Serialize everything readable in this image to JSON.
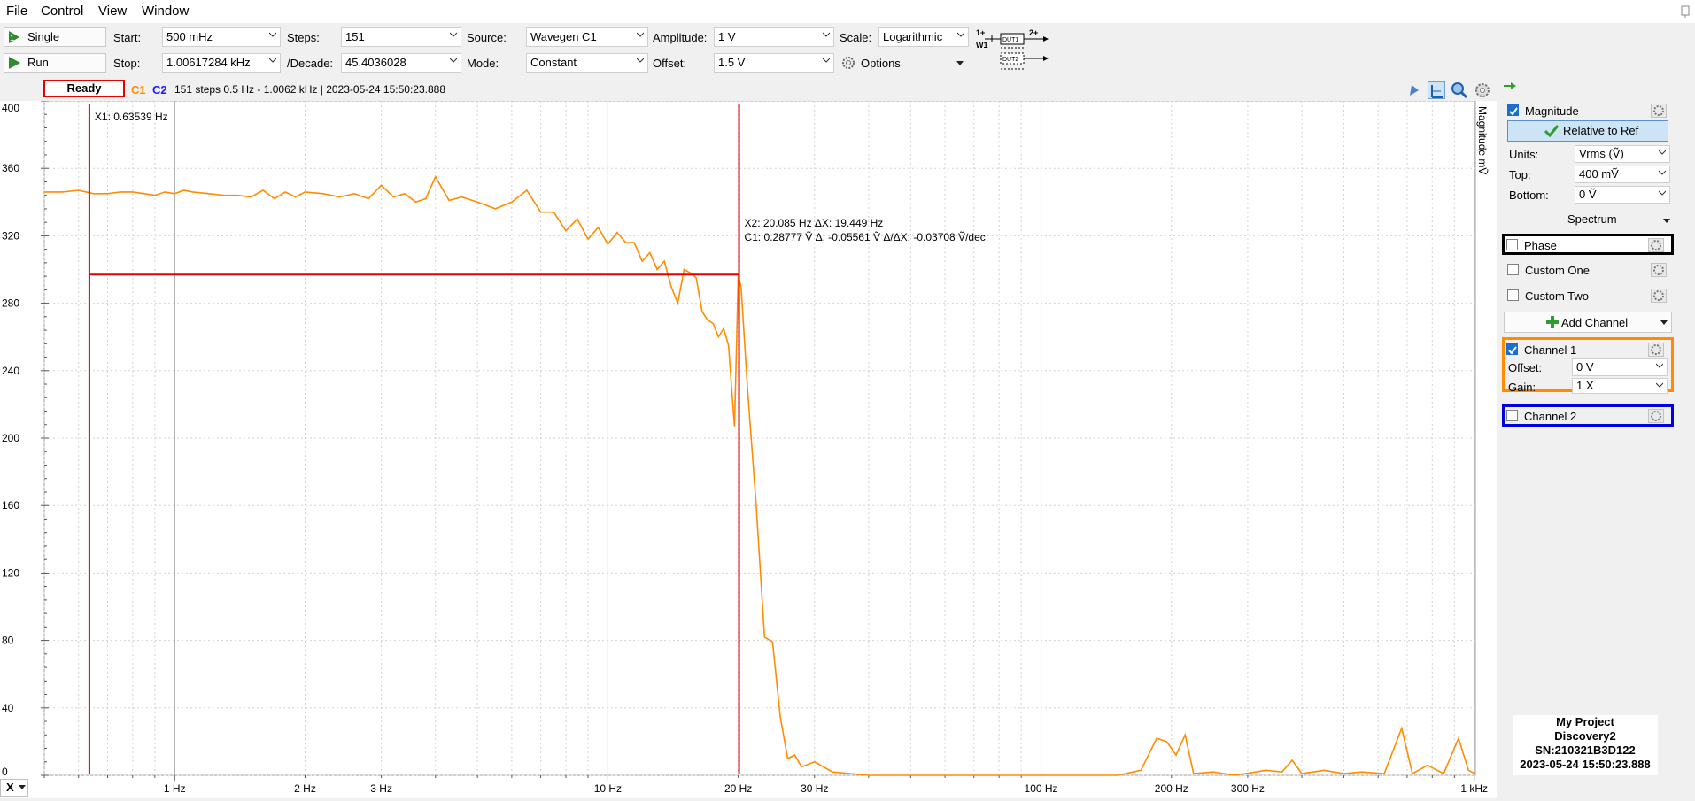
{
  "menu": {
    "file": "File",
    "control": "Control",
    "view": "View",
    "window": "Window"
  },
  "toolbar": {
    "single_label": "Single",
    "run_label": "Run",
    "start_label": "Start:",
    "start_value": "500 mHz",
    "stop_label": "Stop:",
    "stop_value": "1.00617284 kHz",
    "steps_label": "Steps:",
    "steps_value": "151",
    "decade_label": "/Decade:",
    "decade_value": "45.4036028",
    "source_label": "Source:",
    "source_value": "Wavegen C1",
    "mode_label": "Mode:",
    "mode_value": "Constant",
    "amplitude_label": "Amplitude:",
    "amplitude_value": "1 V",
    "offset_label": "Offset:",
    "offset_value": "1.5 V",
    "scale_label": "Scale:",
    "scale_value": "Logarithmic",
    "options_label": "Options",
    "diagram": {
      "w1": "W1",
      "one_plus": "1+",
      "two_plus": "2+",
      "dut1": "DUT1",
      "dut2": "DUT2"
    }
  },
  "status": {
    "ready": "Ready",
    "c1": "C1",
    "c2": "C2",
    "summary": "151 steps  0.5 Hz - 1.0062 kHz | 2023-05-24 15:50:23.888"
  },
  "plot": {
    "axis_title": "Magnitude  mṼ",
    "cursor1": "X1: 0.63539 Hz",
    "cursor2_line1": "X2: 20.085 Hz    ΔX: 19.449 Hz",
    "cursor2_line2": "C1: 0.28777 Ṽ    Δ: -0.05561 Ṽ      Δ/ΔX: -0.03708 Ṽ/dec",
    "x_axis_button": "X"
  },
  "chart_data": {
    "type": "line",
    "title": "",
    "xlabel": "",
    "ylabel": "Magnitude mṼ",
    "x_scale": "log",
    "xlim": [
      0.5,
      1006.17
    ],
    "ylim": [
      0,
      400
    ],
    "grid": true,
    "y_ticks": [
      "0",
      "40",
      "80",
      "120",
      "160",
      "200",
      "240",
      "280",
      "320",
      "360",
      "400"
    ],
    "y_tick_values": [
      0,
      40,
      80,
      120,
      160,
      200,
      240,
      280,
      320,
      360,
      400
    ],
    "x_ticks": [
      "1 Hz",
      "2 Hz",
      "3 Hz",
      "10 Hz",
      "20 Hz",
      "30 Hz",
      "100 Hz",
      "200 Hz",
      "300 Hz",
      "1 kHz"
    ],
    "x_tick_values": [
      1,
      2,
      3,
      10,
      20,
      30,
      100,
      200,
      300,
      1000
    ],
    "cursors": {
      "x1": 0.63539,
      "x2": 20.085,
      "c1_level": 297
    },
    "series": [
      {
        "name": "C1",
        "color": "#ff8c00",
        "points": [
          [
            0.5,
            346
          ],
          [
            0.55,
            346
          ],
          [
            0.6,
            347
          ],
          [
            0.65,
            345
          ],
          [
            0.7,
            345
          ],
          [
            0.75,
            346
          ],
          [
            0.8,
            346
          ],
          [
            0.85,
            345
          ],
          [
            0.9,
            344
          ],
          [
            0.95,
            346
          ],
          [
            1.0,
            345
          ],
          [
            1.05,
            347
          ],
          [
            1.1,
            346
          ],
          [
            1.2,
            345
          ],
          [
            1.3,
            344
          ],
          [
            1.4,
            344
          ],
          [
            1.5,
            343
          ],
          [
            1.6,
            347
          ],
          [
            1.7,
            342
          ],
          [
            1.8,
            346
          ],
          [
            1.9,
            343
          ],
          [
            2.0,
            346
          ],
          [
            2.2,
            345
          ],
          [
            2.4,
            343
          ],
          [
            2.6,
            345
          ],
          [
            2.8,
            342
          ],
          [
            3.0,
            350
          ],
          [
            3.2,
            343
          ],
          [
            3.4,
            345
          ],
          [
            3.6,
            340
          ],
          [
            3.8,
            342
          ],
          [
            4.0,
            355
          ],
          [
            4.3,
            341
          ],
          [
            4.6,
            343
          ],
          [
            5.0,
            340
          ],
          [
            5.5,
            336
          ],
          [
            6.0,
            340
          ],
          [
            6.5,
            347
          ],
          [
            7.0,
            334
          ],
          [
            7.5,
            334
          ],
          [
            8.0,
            323
          ],
          [
            8.5,
            330
          ],
          [
            9.0,
            318
          ],
          [
            9.5,
            325
          ],
          [
            10.0,
            315
          ],
          [
            10.5,
            322
          ],
          [
            11.0,
            316
          ],
          [
            11.5,
            316
          ],
          [
            12.0,
            305
          ],
          [
            12.5,
            310
          ],
          [
            13.0,
            300
          ],
          [
            13.5,
            305
          ],
          [
            14.0,
            290
          ],
          [
            14.5,
            280
          ],
          [
            15.0,
            300
          ],
          [
            15.5,
            298
          ],
          [
            16.0,
            295
          ],
          [
            16.5,
            275
          ],
          [
            17.0,
            270
          ],
          [
            17.5,
            268
          ],
          [
            18.0,
            260
          ],
          [
            18.5,
            265
          ],
          [
            19.0,
            255
          ],
          [
            19.3,
            230
          ],
          [
            19.6,
            207
          ],
          [
            20.0,
            296
          ],
          [
            20.3,
            290
          ],
          [
            21.0,
            230
          ],
          [
            22.0,
            160
          ],
          [
            23.0,
            82
          ],
          [
            24.0,
            79
          ],
          [
            25.0,
            35
          ],
          [
            26.0,
            10
          ],
          [
            27.0,
            12
          ],
          [
            28.0,
            5
          ],
          [
            30.0,
            8
          ],
          [
            33.0,
            2
          ],
          [
            40.0,
            0
          ],
          [
            100.0,
            0
          ],
          [
            150.0,
            0
          ],
          [
            170.0,
            3
          ],
          [
            185.0,
            22
          ],
          [
            195.0,
            20
          ],
          [
            205.0,
            12
          ],
          [
            215.0,
            24
          ],
          [
            225.0,
            1
          ],
          [
            250.0,
            2
          ],
          [
            280.0,
            0
          ],
          [
            330.0,
            3
          ],
          [
            360.0,
            2
          ],
          [
            380.0,
            9
          ],
          [
            400.0,
            1
          ],
          [
            450.0,
            3
          ],
          [
            500.0,
            1
          ],
          [
            550.0,
            2
          ],
          [
            620.0,
            1
          ],
          [
            680.0,
            28
          ],
          [
            720.0,
            1
          ],
          [
            780.0,
            6
          ],
          [
            850.0,
            1
          ],
          [
            920.0,
            22
          ],
          [
            970.0,
            3
          ],
          [
            1006.17,
            1
          ]
        ]
      }
    ]
  },
  "sidebar": {
    "magnitude": "Magnitude",
    "relative_ref": "Relative to Ref",
    "units_label": "Units:",
    "units_value": "Vrms (Ṽ)",
    "top_label": "Top:",
    "top_value": "400 mṼ",
    "bottom_label": "Bottom:",
    "bottom_value": "0 Ṽ",
    "spectrum": "Spectrum",
    "phase": "Phase",
    "custom_one": "Custom One",
    "custom_two": "Custom Two",
    "add_channel": "Add Channel",
    "channel1": "Channel 1",
    "ch1_offset_label": "Offset:",
    "ch1_offset_value": "0 V",
    "ch1_gain_label": "Gain:",
    "ch1_gain_value": "1 X",
    "channel2": "Channel 2"
  },
  "device_info": {
    "project": "My Project",
    "device": "Discovery2",
    "serial": "SN:210321B3D122",
    "timestamp": "2023-05-24 15:50:23.888"
  },
  "colors": {
    "orange": "#ff8c00",
    "red": "#e60000",
    "blue": "#1a1aff",
    "ch1_border": "#ff8c00",
    "ch2_border": "#0000e0",
    "phase_border": "#000000",
    "green": "#2e9e2e"
  }
}
